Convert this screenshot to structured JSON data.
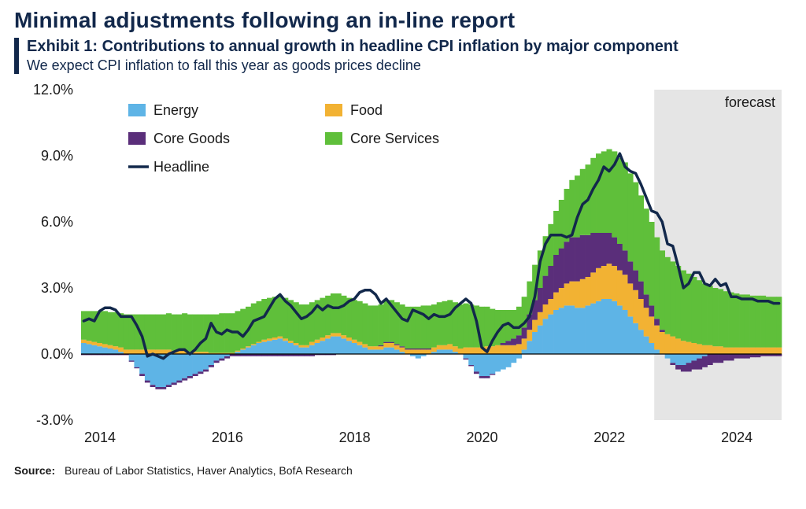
{
  "title": "Minimal adjustments following an in-line report",
  "exhibit": {
    "caption": "Exhibit 1: Contributions to annual growth in headline CPI inflation by major component",
    "subtitle": "We expect CPI inflation to fall this year as goods prices decline"
  },
  "source": {
    "label": "Source:",
    "text": "Bureau of Labor Statistics, Haver Analytics, BofA Research"
  },
  "chart": {
    "type": "stacked-bar-with-line",
    "forecast_label": "forecast",
    "y_axis": {
      "min": -3.0,
      "max": 12.0,
      "tick_step": 3.0,
      "ticks": [
        "-3.0%",
        "0.0%",
        "3.0%",
        "6.0%",
        "9.0%",
        "12.0%"
      ]
    },
    "x_axis": {
      "start_year": 2014,
      "tick_years": [
        2014,
        2016,
        2018,
        2020,
        2022,
        2024
      ]
    },
    "n_periods": 132,
    "forecast_start_index": 108,
    "colors": {
      "energy": "#5eb4e6",
      "food": "#f2b233",
      "core_goods": "#5a2e7a",
      "core_services": "#5fbf3a",
      "headline": "#12284b",
      "axis": "#000000",
      "forecast_band": "#e5e5e5",
      "background": "#ffffff"
    },
    "legend": [
      {
        "key": "energy",
        "label": "Energy",
        "type": "box"
      },
      {
        "key": "food",
        "label": "Food",
        "type": "box"
      },
      {
        "key": "core_goods",
        "label": "Core Goods",
        "type": "box"
      },
      {
        "key": "core_services",
        "label": "Core Services",
        "type": "box"
      },
      {
        "key": "headline",
        "label": "Headline",
        "type": "line"
      }
    ],
    "stroke": {
      "headline_width": 3.5,
      "axis_width": 1.2
    },
    "series": {
      "energy": [
        0.5,
        0.45,
        0.4,
        0.35,
        0.3,
        0.25,
        0.2,
        0.1,
        0.0,
        -0.3,
        -0.6,
        -0.9,
        -1.2,
        -1.4,
        -1.5,
        -1.5,
        -1.4,
        -1.3,
        -1.2,
        -1.1,
        -1.0,
        -0.9,
        -0.8,
        -0.7,
        -0.5,
        -0.3,
        -0.2,
        -0.1,
        0.0,
        0.1,
        0.2,
        0.3,
        0.4,
        0.5,
        0.55,
        0.6,
        0.65,
        0.7,
        0.6,
        0.5,
        0.4,
        0.3,
        0.3,
        0.4,
        0.5,
        0.6,
        0.7,
        0.8,
        0.8,
        0.7,
        0.6,
        0.5,
        0.4,
        0.3,
        0.2,
        0.2,
        0.2,
        0.3,
        0.3,
        0.2,
        0.1,
        0.0,
        -0.1,
        -0.2,
        -0.1,
        0.0,
        0.1,
        0.2,
        0.2,
        0.2,
        0.1,
        0.0,
        -0.2,
        -0.5,
        -0.8,
        -1.0,
        -1.0,
        -0.9,
        -0.8,
        -0.7,
        -0.6,
        -0.4,
        -0.2,
        0.2,
        0.6,
        1.0,
        1.3,
        1.6,
        1.8,
        2.0,
        2.1,
        2.2,
        2.2,
        2.1,
        2.1,
        2.2,
        2.3,
        2.4,
        2.5,
        2.5,
        2.4,
        2.2,
        2.0,
        1.7,
        1.4,
        1.1,
        0.8,
        0.5,
        0.2,
        0.0,
        -0.2,
        -0.4,
        -0.5,
        -0.5,
        -0.4,
        -0.3,
        -0.2,
        -0.1,
        0.0,
        0.0,
        0.0,
        0.0,
        0.0,
        0.0,
        0.0,
        0.0,
        0.0,
        0.0,
        0.0,
        0.0,
        0.0,
        0.0
      ],
      "food": [
        0.15,
        0.15,
        0.15,
        0.15,
        0.15,
        0.15,
        0.15,
        0.2,
        0.2,
        0.2,
        0.2,
        0.2,
        0.2,
        0.2,
        0.2,
        0.2,
        0.2,
        0.15,
        0.15,
        0.15,
        0.1,
        0.1,
        0.1,
        0.1,
        0.05,
        0.05,
        0.05,
        0.05,
        0.05,
        0.05,
        0.05,
        0.05,
        0.05,
        0.05,
        0.1,
        0.1,
        0.1,
        0.1,
        0.1,
        0.1,
        0.1,
        0.1,
        0.1,
        0.15,
        0.15,
        0.15,
        0.15,
        0.15,
        0.15,
        0.15,
        0.15,
        0.15,
        0.15,
        0.15,
        0.15,
        0.15,
        0.15,
        0.2,
        0.2,
        0.2,
        0.2,
        0.2,
        0.2,
        0.2,
        0.2,
        0.2,
        0.2,
        0.2,
        0.2,
        0.25,
        0.25,
        0.25,
        0.3,
        0.3,
        0.3,
        0.3,
        0.35,
        0.35,
        0.4,
        0.4,
        0.4,
        0.4,
        0.45,
        0.5,
        0.5,
        0.55,
        0.6,
        0.65,
        0.7,
        0.8,
        0.9,
        1.0,
        1.1,
        1.2,
        1.3,
        1.3,
        1.4,
        1.5,
        1.5,
        1.6,
        1.6,
        1.6,
        1.6,
        1.5,
        1.5,
        1.4,
        1.3,
        1.2,
        1.1,
        1.0,
        0.9,
        0.8,
        0.7,
        0.6,
        0.55,
        0.5,
        0.45,
        0.4,
        0.4,
        0.35,
        0.35,
        0.3,
        0.3,
        0.3,
        0.3,
        0.3,
        0.3,
        0.3,
        0.3,
        0.3,
        0.3,
        0.3
      ],
      "core_goods": [
        -0.05,
        -0.05,
        -0.05,
        -0.05,
        -0.05,
        -0.05,
        -0.05,
        -0.05,
        -0.05,
        -0.05,
        -0.05,
        -0.1,
        -0.1,
        -0.1,
        -0.1,
        -0.1,
        -0.1,
        -0.1,
        -0.1,
        -0.1,
        -0.1,
        -0.1,
        -0.1,
        -0.1,
        -0.1,
        -0.1,
        -0.1,
        -0.1,
        -0.1,
        -0.1,
        -0.1,
        -0.1,
        -0.1,
        -0.1,
        -0.1,
        -0.1,
        -0.1,
        -0.1,
        -0.1,
        -0.1,
        -0.1,
        -0.1,
        -0.1,
        -0.1,
        -0.05,
        -0.05,
        -0.05,
        -0.05,
        0.0,
        0.0,
        0.0,
        0.0,
        0.0,
        0.0,
        0.0,
        0.0,
        0.05,
        0.05,
        0.05,
        0.05,
        0.05,
        0.05,
        0.05,
        0.05,
        0.05,
        0.05,
        0.0,
        0.0,
        0.0,
        0.0,
        0.0,
        0.0,
        -0.05,
        -0.05,
        -0.1,
        -0.1,
        -0.1,
        -0.05,
        0.0,
        0.1,
        0.2,
        0.3,
        0.4,
        0.5,
        0.7,
        0.9,
        1.1,
        1.3,
        1.5,
        1.7,
        1.8,
        1.9,
        2.0,
        2.0,
        2.0,
        1.9,
        1.8,
        1.6,
        1.5,
        1.4,
        1.3,
        1.2,
        1.1,
        1.0,
        0.9,
        0.8,
        0.6,
        0.5,
        0.3,
        0.1,
        0.0,
        -0.1,
        -0.2,
        -0.3,
        -0.4,
        -0.4,
        -0.5,
        -0.5,
        -0.5,
        -0.4,
        -0.4,
        -0.3,
        -0.3,
        -0.2,
        -0.2,
        -0.2,
        -0.15,
        -0.15,
        -0.1,
        -0.1,
        -0.1,
        -0.1
      ],
      "core_services": [
        1.3,
        1.35,
        1.4,
        1.45,
        1.5,
        1.5,
        1.55,
        1.55,
        1.6,
        1.6,
        1.6,
        1.6,
        1.6,
        1.6,
        1.6,
        1.6,
        1.65,
        1.65,
        1.65,
        1.7,
        1.7,
        1.7,
        1.7,
        1.7,
        1.75,
        1.75,
        1.8,
        1.8,
        1.8,
        1.8,
        1.8,
        1.8,
        1.85,
        1.85,
        1.85,
        1.85,
        1.85,
        1.85,
        1.85,
        1.85,
        1.85,
        1.85,
        1.85,
        1.8,
        1.8,
        1.8,
        1.8,
        1.8,
        1.8,
        1.8,
        1.8,
        1.8,
        1.85,
        1.85,
        1.85,
        1.85,
        1.85,
        1.85,
        1.9,
        1.9,
        1.9,
        1.9,
        1.9,
        1.9,
        1.95,
        1.95,
        1.95,
        1.95,
        2.0,
        2.0,
        2.0,
        2.0,
        2.0,
        1.95,
        1.9,
        1.85,
        1.8,
        1.7,
        1.6,
        1.5,
        1.4,
        1.3,
        1.3,
        1.4,
        1.5,
        1.6,
        1.7,
        1.8,
        1.9,
        2.0,
        2.2,
        2.4,
        2.6,
        2.8,
        3.0,
        3.2,
        3.4,
        3.6,
        3.7,
        3.8,
        3.9,
        3.9,
        4.0,
        4.0,
        4.0,
        3.9,
        3.9,
        3.8,
        3.7,
        3.6,
        3.5,
        3.4,
        3.3,
        3.2,
        3.1,
        3.0,
        2.9,
        2.8,
        2.7,
        2.65,
        2.6,
        2.55,
        2.5,
        2.45,
        2.4,
        2.4,
        2.35,
        2.35,
        2.35,
        2.3,
        2.3,
        2.3
      ],
      "headline": [
        1.5,
        1.6,
        1.5,
        1.95,
        2.1,
        2.1,
        2.0,
        1.7,
        1.7,
        1.7,
        1.3,
        0.8,
        -0.1,
        0.0,
        -0.1,
        -0.2,
        0.0,
        0.1,
        0.2,
        0.2,
        0.0,
        0.2,
        0.5,
        0.7,
        1.4,
        1.0,
        0.9,
        1.1,
        1.0,
        1.0,
        0.8,
        1.1,
        1.5,
        1.6,
        1.7,
        2.1,
        2.5,
        2.7,
        2.4,
        2.2,
        1.9,
        1.6,
        1.7,
        1.9,
        2.2,
        2.0,
        2.2,
        2.1,
        2.1,
        2.2,
        2.4,
        2.5,
        2.8,
        2.9,
        2.9,
        2.7,
        2.3,
        2.5,
        2.2,
        1.9,
        1.6,
        1.5,
        2.0,
        1.9,
        1.8,
        1.6,
        1.8,
        1.7,
        1.7,
        1.8,
        2.1,
        2.3,
        2.5,
        2.3,
        1.5,
        0.3,
        0.1,
        0.6,
        1.0,
        1.3,
        1.4,
        1.2,
        1.2,
        1.4,
        1.7,
        2.6,
        4.2,
        5.0,
        5.4,
        5.4,
        5.4,
        5.3,
        5.4,
        6.2,
        6.8,
        7.0,
        7.5,
        7.9,
        8.5,
        8.3,
        8.6,
        9.1,
        8.5,
        8.3,
        8.2,
        7.7,
        7.1,
        6.5,
        6.4,
        6.0,
        5.0,
        4.9,
        4.0,
        3.0,
        3.2,
        3.7,
        3.7,
        3.2,
        3.1,
        3.4,
        3.1,
        3.2,
        2.6,
        2.6,
        2.5,
        2.5,
        2.5,
        2.4,
        2.4,
        2.4,
        2.3,
        2.3
      ]
    }
  }
}
